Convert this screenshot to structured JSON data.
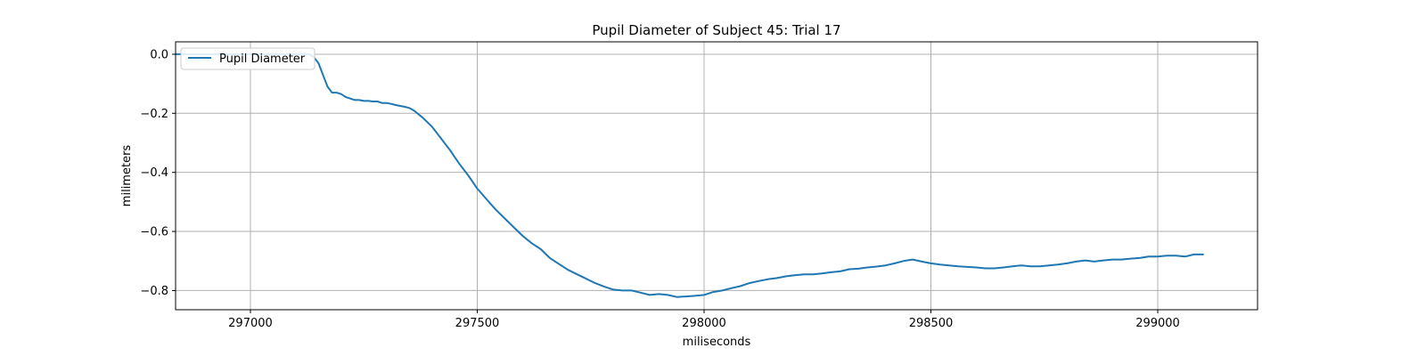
{
  "chart_data": {
    "type": "line",
    "title": "Pupil Diameter of Subject 45: Trial 17",
    "xlabel": "miliseconds",
    "ylabel": "milimeters",
    "xlim": [
      296835,
      299220
    ],
    "ylim": [
      -0.865,
      0.042
    ],
    "xticks": [
      297000,
      297500,
      298000,
      298500,
      299000
    ],
    "yticks": [
      0.0,
      -0.2,
      -0.4,
      -0.6,
      -0.8
    ],
    "xtick_labels": [
      "297000",
      "297500",
      "298000",
      "298500",
      "299000"
    ],
    "ytick_labels": [
      "0.0",
      "−0.2",
      "−0.4",
      "−0.6",
      "−0.8"
    ],
    "grid": true,
    "legend": "upper-left",
    "series": [
      {
        "name": "Pupil Diameter",
        "color": "#1f77b4",
        "x": [
          296835,
          296900,
          296950,
          297000,
          297050,
          297100,
          297130,
          297140,
          297150,
          297160,
          297170,
          297180,
          297190,
          297200,
          297210,
          297220,
          297230,
          297240,
          297250,
          297260,
          297270,
          297280,
          297290,
          297300,
          297310,
          297320,
          297330,
          297340,
          297350,
          297360,
          297380,
          297400,
          297420,
          297440,
          297460,
          297480,
          297500,
          297520,
          297540,
          297560,
          297580,
          297600,
          297620,
          297640,
          297660,
          297680,
          297700,
          297720,
          297740,
          297760,
          297780,
          297800,
          297820,
          297840,
          297860,
          297880,
          297900,
          297920,
          297940,
          297960,
          297980,
          298000,
          298020,
          298040,
          298060,
          298080,
          298100,
          298120,
          298140,
          298160,
          298180,
          298200,
          298220,
          298240,
          298260,
          298280,
          298300,
          298320,
          298340,
          298360,
          298380,
          298400,
          298420,
          298440,
          298460,
          298480,
          298500,
          298520,
          298540,
          298560,
          298580,
          298600,
          298620,
          298640,
          298660,
          298680,
          298700,
          298720,
          298740,
          298760,
          298780,
          298800,
          298820,
          298840,
          298860,
          298880,
          298900,
          298920,
          298940,
          298960,
          298980,
          299000,
          299020,
          299040,
          299060,
          299080,
          299100
        ],
        "y": [
          0.0,
          0.0,
          0.0,
          0.0,
          0.0,
          0.0,
          0.0,
          -0.01,
          -0.03,
          -0.07,
          -0.11,
          -0.13,
          -0.13,
          -0.135,
          -0.145,
          -0.15,
          -0.155,
          -0.155,
          -0.158,
          -0.158,
          -0.16,
          -0.16,
          -0.165,
          -0.165,
          -0.168,
          -0.172,
          -0.175,
          -0.178,
          -0.182,
          -0.19,
          -0.215,
          -0.245,
          -0.285,
          -0.325,
          -0.37,
          -0.41,
          -0.455,
          -0.49,
          -0.525,
          -0.555,
          -0.585,
          -0.615,
          -0.64,
          -0.66,
          -0.69,
          -0.71,
          -0.73,
          -0.745,
          -0.76,
          -0.775,
          -0.787,
          -0.797,
          -0.8,
          -0.8,
          -0.807,
          -0.815,
          -0.812,
          -0.815,
          -0.822,
          -0.82,
          -0.818,
          -0.815,
          -0.805,
          -0.8,
          -0.792,
          -0.785,
          -0.775,
          -0.768,
          -0.762,
          -0.758,
          -0.752,
          -0.748,
          -0.745,
          -0.745,
          -0.742,
          -0.738,
          -0.735,
          -0.728,
          -0.726,
          -0.722,
          -0.719,
          -0.715,
          -0.708,
          -0.7,
          -0.695,
          -0.702,
          -0.708,
          -0.712,
          -0.715,
          -0.718,
          -0.72,
          -0.722,
          -0.725,
          -0.725,
          -0.722,
          -0.718,
          -0.715,
          -0.718,
          -0.718,
          -0.715,
          -0.712,
          -0.708,
          -0.702,
          -0.698,
          -0.702,
          -0.698,
          -0.695,
          -0.695,
          -0.692,
          -0.69,
          -0.685,
          -0.685,
          -0.682,
          -0.682,
          -0.685,
          -0.678,
          -0.678
        ]
      }
    ]
  }
}
